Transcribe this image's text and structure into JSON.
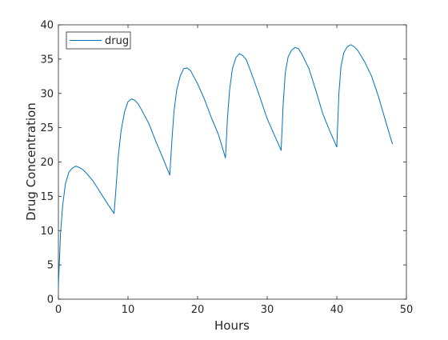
{
  "chart_data": {
    "type": "line",
    "title": "",
    "xlabel": "Hours",
    "ylabel": "Drug Concentration",
    "xlim": [
      0,
      50
    ],
    "ylim": [
      0,
      40
    ],
    "xticks": [
      0,
      10,
      20,
      30,
      40,
      50
    ],
    "yticks": [
      0,
      5,
      10,
      15,
      20,
      25,
      30,
      35,
      40
    ],
    "xtick_labels": [
      "0",
      "10",
      "20",
      "30",
      "40",
      "50"
    ],
    "ytick_labels": [
      "0",
      "5",
      "10",
      "15",
      "20",
      "25",
      "30",
      "35",
      "40"
    ],
    "grid": false,
    "legend": {
      "position": "top-left",
      "entries": [
        "drug"
      ]
    },
    "series": [
      {
        "name": "drug",
        "color": "#0072bd",
        "x": [
          0,
          0.3,
          0.6,
          1,
          1.5,
          2,
          2.5,
          3,
          3.5,
          4,
          5,
          6,
          7,
          8,
          8.3,
          8.6,
          9,
          9.5,
          10,
          10.5,
          11,
          11.5,
          12,
          13,
          14,
          15,
          16,
          16.3,
          16.6,
          17,
          17.5,
          18,
          18.5,
          19,
          20,
          21,
          22,
          23,
          24,
          24.3,
          24.6,
          25,
          25.5,
          26,
          26.5,
          27,
          28,
          29,
          30,
          31,
          32,
          32.3,
          32.6,
          33,
          33.5,
          34,
          34.5,
          35,
          36,
          37,
          38,
          39,
          40,
          40.3,
          40.6,
          41,
          41.5,
          42,
          42.5,
          43,
          44,
          45,
          46,
          47,
          48
        ],
        "y": [
          1.9,
          9.5,
          13.5,
          16.8,
          18.5,
          19.1,
          19.4,
          19.2,
          18.9,
          18.4,
          17.2,
          15.6,
          14.0,
          12.5,
          16.5,
          20.8,
          24.5,
          27.3,
          28.8,
          29.2,
          29.0,
          28.4,
          27.5,
          25.6,
          23.0,
          20.6,
          18.1,
          23.0,
          27.3,
          30.5,
          32.5,
          33.6,
          33.7,
          33.3,
          31.4,
          29.1,
          26.4,
          24.0,
          20.6,
          26.5,
          30.5,
          33.6,
          35.2,
          35.8,
          35.5,
          34.9,
          32.2,
          29.3,
          26.3,
          24.0,
          21.7,
          28.5,
          33.0,
          35.3,
          36.3,
          36.7,
          36.5,
          35.7,
          33.6,
          30.4,
          27.0,
          24.5,
          22.2,
          30.0,
          33.9,
          35.9,
          36.8,
          37.1,
          36.8,
          36.3,
          34.6,
          32.5,
          29.5,
          26.0,
          22.6
        ]
      }
    ]
  }
}
